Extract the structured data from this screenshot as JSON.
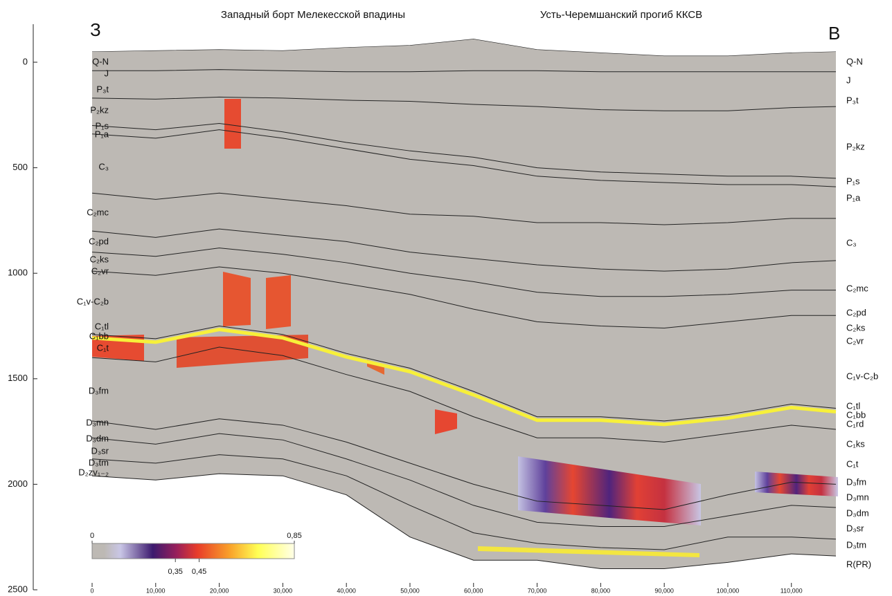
{
  "chart_data": {
    "type": "section",
    "title_west": "Западный борт Мелекесской впадины",
    "title_east": "Усть-Черемшанский прогиб ККСВ",
    "west_label": "З",
    "east_label": "В",
    "x": [
      0,
      10000,
      20000,
      30000,
      40000,
      50000,
      60000,
      70000,
      80000,
      90000,
      100000,
      110000,
      117000
    ],
    "xlim": [
      0,
      117000
    ],
    "xticks": [
      0,
      {
        "value": 10000,
        "label": "10,000"
      },
      {
        "value": 20000,
        "label": "20,000"
      },
      {
        "value": 30000,
        "label": "30,000"
      },
      {
        "value": 40000,
        "label": "40,000"
      },
      {
        "value": 50000,
        "label": "50,000"
      },
      {
        "value": 60000,
        "label": "60,000"
      },
      {
        "value": 70000,
        "label": "70,000"
      },
      {
        "value": 80000,
        "label": "80,000"
      },
      {
        "value": 90000,
        "label": "90,000"
      },
      {
        "value": 100000,
        "label": "100,000"
      },
      {
        "value": 110000,
        "label": "110,000"
      }
    ],
    "ylim": [
      -180,
      2500
    ],
    "yticks": [
      0,
      500,
      1000,
      1500,
      2000,
      2500
    ],
    "series": [
      {
        "values": [
          -50,
          -55,
          -60,
          -55,
          -70,
          -80,
          -110,
          -60,
          -45,
          -30,
          -30,
          -45,
          -50
        ]
      },
      {
        "values": [
          40,
          40,
          35,
          40,
          45,
          45,
          40,
          40,
          45,
          45,
          45,
          45,
          45
        ]
      },
      {
        "values": [
          170,
          175,
          165,
          170,
          180,
          185,
          200,
          210,
          225,
          230,
          230,
          215,
          210
        ]
      },
      {
        "values": [
          300,
          320,
          290,
          330,
          380,
          420,
          450,
          500,
          520,
          530,
          540,
          540,
          550
        ]
      },
      {
        "values": [
          340,
          360,
          320,
          360,
          410,
          460,
          490,
          540,
          560,
          570,
          580,
          580,
          590
        ]
      },
      {
        "values": [
          620,
          650,
          620,
          650,
          680,
          720,
          730,
          760,
          760,
          770,
          760,
          740,
          740
        ]
      },
      {
        "values": [
          800,
          830,
          790,
          820,
          850,
          900,
          930,
          960,
          980,
          990,
          980,
          950,
          940
        ]
      },
      {
        "values": [
          900,
          920,
          880,
          910,
          950,
          1000,
          1040,
          1090,
          1110,
          1110,
          1100,
          1080,
          1080
        ]
      },
      {
        "values": [
          990,
          1010,
          970,
          1000,
          1050,
          1100,
          1170,
          1230,
          1250,
          1260,
          1230,
          1200,
          1200
        ]
      },
      {
        "values": [
          1290,
          1310,
          1250,
          1290,
          1380,
          1450,
          1560,
          1680,
          1680,
          1700,
          1670,
          1620,
          1640
        ]
      },
      {
        "values": [
          1400,
          1420,
          1350,
          1390,
          1480,
          1560,
          1680,
          1780,
          1780,
          1800,
          1760,
          1720,
          1740
        ]
      },
      {
        "values": [
          1700,
          1740,
          1690,
          1720,
          1800,
          1900,
          2000,
          2080,
          2100,
          2120,
          2050,
          1990,
          2000
        ]
      },
      {
        "values": [
          1780,
          1810,
          1760,
          1790,
          1880,
          1980,
          2100,
          2180,
          2200,
          2200,
          2150,
          2100,
          2110
        ]
      },
      {
        "values": [
          1880,
          1900,
          1860,
          1880,
          1960,
          2100,
          2230,
          2280,
          2300,
          2310,
          2250,
          2250,
          2260
        ]
      },
      {
        "values": [
          1960,
          1980,
          1950,
          1960,
          2050,
          2250,
          2360,
          2360,
          2400,
          2400,
          2370,
          2330,
          2340
        ]
      }
    ],
    "left_labels": [
      "Q-N",
      "J",
      "P₃t",
      "P₂kz",
      "P₁s",
      "P₁a",
      "C₃",
      "C₂mc",
      "C₂pd",
      "C₂ks",
      "C₂vr",
      "C₁v-C₂b",
      "C₁tl",
      "C₁bb",
      "C₁t",
      "D₃fm",
      "D₃mn",
      "D₃dm",
      "D₃sr",
      "D₃tm",
      "D₂zv₁₋₂"
    ],
    "right_labels": [
      "Q-N",
      "J",
      "P₃t",
      "P₂kz",
      "P₁s",
      "P₁a",
      "C₃",
      "C₂mc",
      "C₂pd",
      "C₂ks",
      "C₂vr",
      "C₁v-C₂b",
      "C₁tl",
      "C₁bb",
      "C₁rd",
      "C₁ks",
      "C₁t",
      "D₃fm",
      "D₃mn",
      "D₃dm",
      "D₃sr",
      "D₃tm",
      "R(PR)"
    ],
    "colorbar": {
      "lim": [
        0,
        0.85
      ],
      "ticks": [
        0,
        {
          "value": 0.85,
          "label": "0,85"
        },
        {
          "value": 0.35,
          "label": "0,35"
        },
        {
          "value": 0.45,
          "label": "0,45"
        }
      ]
    }
  }
}
